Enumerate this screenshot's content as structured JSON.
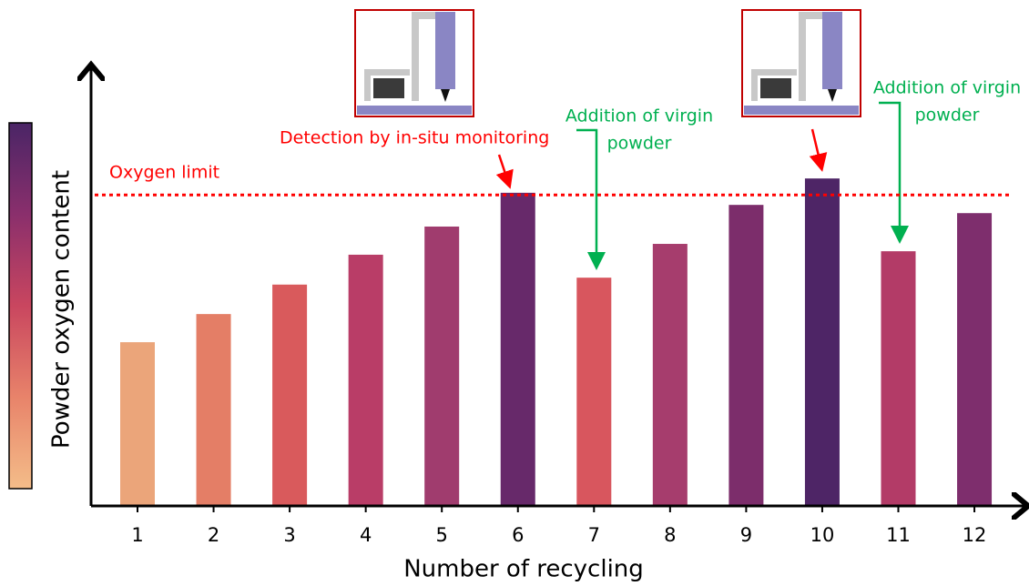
{
  "chart_data": {
    "type": "bar",
    "x_label": "Number of recycling",
    "y_label": "Powder oxygen content",
    "categories": [
      "1",
      "2",
      "3",
      "4",
      "5",
      "6",
      "7",
      "8",
      "9",
      "10",
      "11",
      "12"
    ],
    "values": [
      37.8,
      44.3,
      51.1,
      58.0,
      64.5,
      72.3,
      52.7,
      60.5,
      69.5,
      75.6,
      58.8,
      67.6
    ],
    "colors": [
      "#eba57a",
      "#e47e66",
      "#d95a5c",
      "#b93d67",
      "#a03c6e",
      "#67296a",
      "#d8565e",
      "#a63d6d",
      "#7c2d6b",
      "#4e2566",
      "#b33b67",
      "#7e2e6d"
    ],
    "ylim": [
      0,
      100
    ],
    "colorbar": [
      "#4a2566",
      "#8a2f6c",
      "#c9465f",
      "#e8836a",
      "#f4bd89"
    ],
    "oxygen_limit": {
      "label": "Oxygen limit",
      "value": 71.8,
      "color": "#ff0000"
    },
    "annotations": {
      "detection": "Detection by in-situ monitoring",
      "addition_1": [
        "Addition of virgin",
        "powder"
      ],
      "addition_2": [
        "Addition of virgin",
        "powder"
      ]
    }
  }
}
